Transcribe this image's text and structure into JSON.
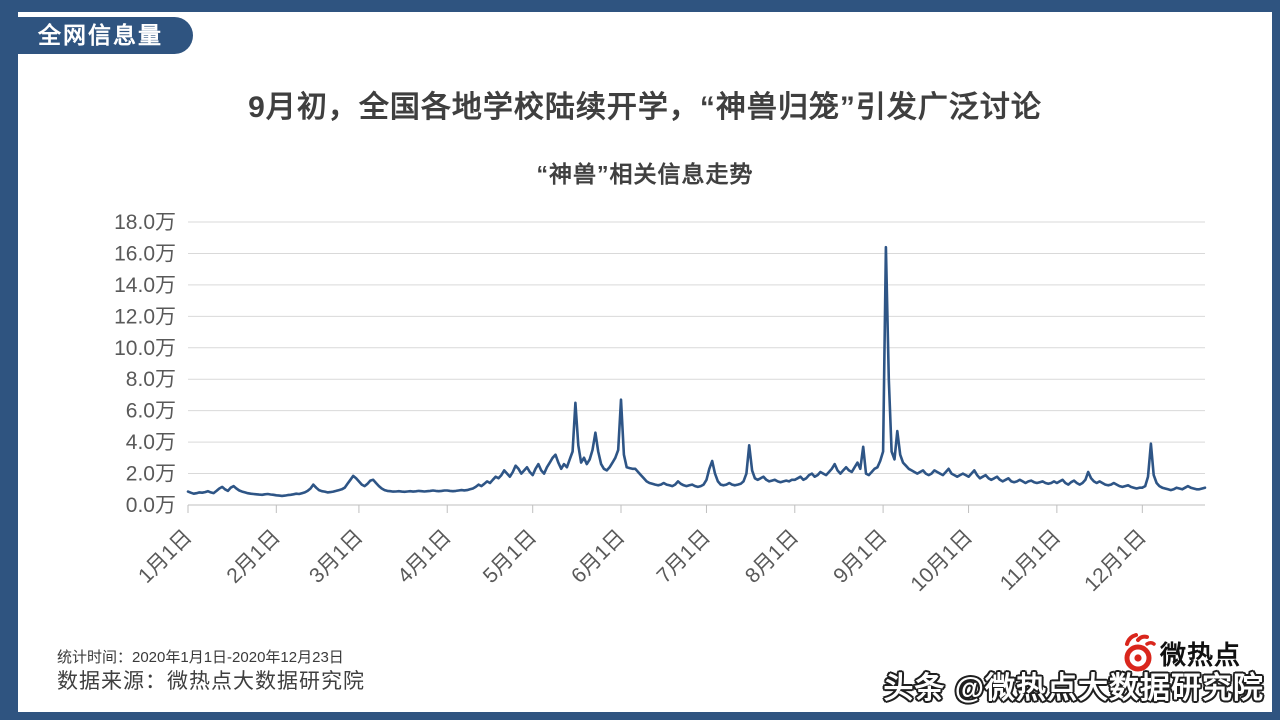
{
  "frame": {
    "accent_color": "#2F5480"
  },
  "header": {
    "badge": "全网信息量",
    "title": "9月初，全国各地学校陆续开学，“神兽归笼”引发广泛讨论"
  },
  "chart_data": {
    "type": "line",
    "title": "“神兽”相关信息走势",
    "unit": "万",
    "date_range": [
      "2020-01-01",
      "2020-12-23"
    ],
    "ylim": [
      0,
      18
    ],
    "y_tick_step": 2,
    "y_tick_labels": [
      "0.0万",
      "2.0万",
      "4.0万",
      "6.0万",
      "8.0万",
      "10.0万",
      "12.0万",
      "14.0万",
      "16.0万",
      "18.0万"
    ],
    "x_tick_labels": [
      "1月1日",
      "2月1日",
      "3月1日",
      "4月1日",
      "5月1日",
      "6月1日",
      "7月1日",
      "8月1日",
      "9月1日",
      "10月1日",
      "11月1日",
      "12月1日"
    ],
    "x_tick_day_index": [
      0,
      31,
      60,
      91,
      121,
      152,
      182,
      213,
      244,
      274,
      305,
      335
    ],
    "grid": "horizontal",
    "legend": "none",
    "line_color": "#2E5586",
    "grid_color": "#D9D9D9",
    "axis_color": "#BFBFBF",
    "tick_label_color": "#595959",
    "peak_annotation": {
      "date": "2020-09-02",
      "value_wan": 16.4
    },
    "series": [
      {
        "name": "“神兽”相关信息量",
        "values_wan": [
          0.85,
          0.78,
          0.72,
          0.75,
          0.8,
          0.78,
          0.82,
          0.88,
          0.8,
          0.76,
          0.9,
          1.05,
          1.15,
          1.0,
          0.9,
          1.1,
          1.2,
          1.05,
          0.92,
          0.85,
          0.8,
          0.75,
          0.72,
          0.7,
          0.68,
          0.66,
          0.65,
          0.68,
          0.7,
          0.67,
          0.65,
          0.62,
          0.6,
          0.58,
          0.6,
          0.63,
          0.65,
          0.68,
          0.72,
          0.7,
          0.75,
          0.8,
          0.9,
          1.05,
          1.3,
          1.1,
          0.95,
          0.88,
          0.85,
          0.8,
          0.82,
          0.85,
          0.9,
          0.95,
          1.0,
          1.1,
          1.35,
          1.6,
          1.85,
          1.7,
          1.5,
          1.3,
          1.2,
          1.35,
          1.55,
          1.6,
          1.4,
          1.2,
          1.05,
          0.95,
          0.9,
          0.88,
          0.85,
          0.86,
          0.88,
          0.85,
          0.84,
          0.86,
          0.88,
          0.85,
          0.87,
          0.9,
          0.88,
          0.86,
          0.88,
          0.9,
          0.92,
          0.9,
          0.88,
          0.9,
          0.92,
          0.92,
          0.9,
          0.88,
          0.9,
          0.92,
          0.95,
          0.93,
          0.95,
          1.0,
          1.05,
          1.15,
          1.3,
          1.2,
          1.35,
          1.5,
          1.4,
          1.6,
          1.8,
          1.7,
          1.9,
          2.2,
          2.0,
          1.8,
          2.1,
          2.5,
          2.3,
          2.0,
          2.2,
          2.4,
          2.1,
          1.9,
          2.3,
          2.6,
          2.2,
          2.0,
          2.4,
          2.7,
          3.0,
          3.2,
          2.7,
          2.3,
          2.6,
          2.4,
          2.9,
          3.4,
          6.5,
          3.8,
          2.7,
          3.0,
          2.6,
          2.9,
          3.5,
          4.6,
          3.4,
          2.6,
          2.3,
          2.2,
          2.4,
          2.7,
          3.0,
          3.5,
          6.7,
          3.2,
          2.4,
          2.35,
          2.3,
          2.3,
          2.1,
          1.9,
          1.7,
          1.5,
          1.4,
          1.35,
          1.3,
          1.25,
          1.3,
          1.4,
          1.3,
          1.25,
          1.2,
          1.3,
          1.5,
          1.35,
          1.25,
          1.2,
          1.25,
          1.3,
          1.2,
          1.15,
          1.2,
          1.3,
          1.6,
          2.3,
          2.8,
          2.0,
          1.5,
          1.3,
          1.25,
          1.3,
          1.4,
          1.3,
          1.25,
          1.3,
          1.35,
          1.5,
          2.0,
          3.8,
          2.2,
          1.7,
          1.6,
          1.7,
          1.8,
          1.6,
          1.5,
          1.55,
          1.6,
          1.5,
          1.45,
          1.5,
          1.55,
          1.5,
          1.6,
          1.6,
          1.7,
          1.8,
          1.6,
          1.7,
          1.9,
          2.0,
          1.8,
          1.9,
          2.1,
          2.0,
          1.9,
          2.1,
          2.3,
          2.6,
          2.2,
          2.0,
          2.2,
          2.4,
          2.2,
          2.1,
          2.4,
          2.7,
          2.3,
          3.7,
          2.0,
          1.9,
          2.1,
          2.3,
          2.4,
          2.8,
          3.4,
          16.4,
          8.0,
          3.4,
          2.9,
          4.7,
          3.2,
          2.7,
          2.5,
          2.3,
          2.2,
          2.1,
          2.0,
          2.1,
          2.2,
          2.0,
          1.9,
          2.0,
          2.2,
          2.1,
          2.0,
          1.9,
          2.1,
          2.3,
          2.0,
          1.9,
          1.8,
          1.9,
          2.0,
          1.9,
          1.8,
          2.0,
          2.2,
          1.9,
          1.7,
          1.8,
          1.9,
          1.7,
          1.6,
          1.7,
          1.8,
          1.6,
          1.5,
          1.6,
          1.7,
          1.5,
          1.45,
          1.5,
          1.6,
          1.5,
          1.4,
          1.5,
          1.55,
          1.45,
          1.4,
          1.45,
          1.5,
          1.4,
          1.35,
          1.4,
          1.5,
          1.4,
          1.5,
          1.6,
          1.4,
          1.3,
          1.45,
          1.55,
          1.4,
          1.3,
          1.4,
          1.6,
          2.1,
          1.7,
          1.5,
          1.4,
          1.5,
          1.4,
          1.3,
          1.25,
          1.3,
          1.4,
          1.3,
          1.2,
          1.15,
          1.2,
          1.25,
          1.15,
          1.1,
          1.05,
          1.1,
          1.1,
          1.2,
          1.8,
          3.9,
          1.9,
          1.4,
          1.2,
          1.1,
          1.05,
          1.0,
          0.95,
          1.0,
          1.1,
          1.05,
          1.0,
          1.1,
          1.2,
          1.1,
          1.05,
          1.0,
          1.0,
          1.05,
          1.1
        ]
      }
    ]
  },
  "footer": {
    "stat_time": "统计时间：2020年1月1日-2020年12月23日",
    "source": "数据来源：微热点大数据研究院",
    "watermark": "头条 @微热点大数据研究院",
    "logo_text": "微热点"
  }
}
